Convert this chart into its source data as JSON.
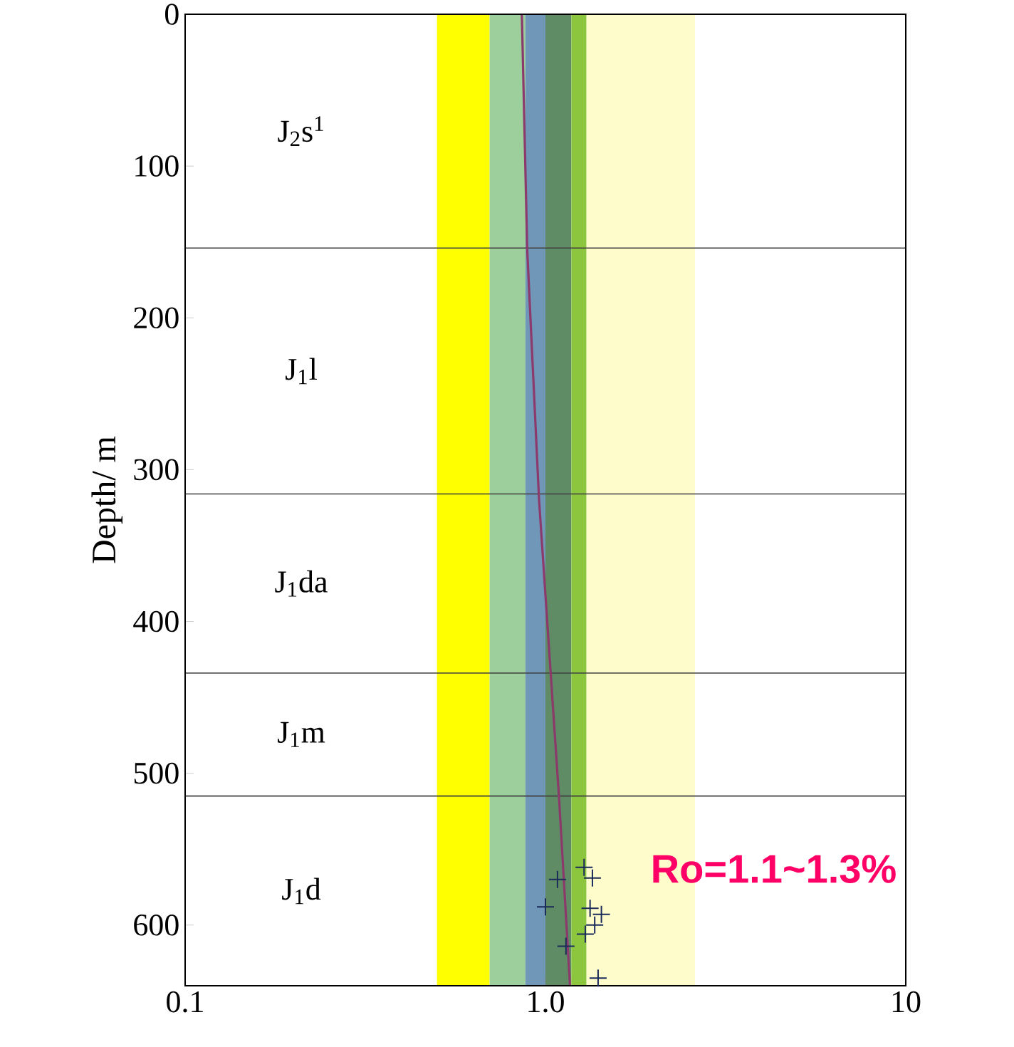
{
  "chart_data": {
    "type": "line",
    "ylabel": "Depth/ m",
    "log": "x",
    "xlim": [
      0.1,
      10
    ],
    "xticks": [
      0.1,
      {
        "value": 1,
        "label": "1.0"
      },
      10
    ],
    "ylim": [
      640,
      0
    ],
    "yticks": [
      0,
      100,
      200,
      300,
      400,
      500,
      600
    ],
    "grid": false,
    "bands": [
      {
        "axis": "x",
        "from": 0.5,
        "to": 0.7,
        "color": "#ffff00"
      },
      {
        "axis": "x",
        "from": 0.7,
        "to": 0.88,
        "color": "#9dcf9d"
      },
      {
        "axis": "x",
        "from": 0.88,
        "to": 1.0,
        "color": "#7096b8"
      },
      {
        "axis": "x",
        "from": 1.0,
        "to": 1.18,
        "color": "#5f8c64"
      },
      {
        "axis": "x",
        "from": 1.18,
        "to": 1.3,
        "color": "#8cc63f"
      },
      {
        "axis": "x",
        "from": 1.3,
        "to": 2.6,
        "color": "#fffccc"
      }
    ],
    "ref_lines": [
      {
        "axis": "y",
        "value": 154,
        "color": "#404040"
      },
      {
        "axis": "y",
        "value": 316,
        "color": "#404040"
      },
      {
        "axis": "y",
        "value": 434,
        "color": "#404040"
      },
      {
        "axis": "y",
        "value": 515,
        "color": "#404040"
      }
    ],
    "series": [
      {
        "color": "#8b3a6b",
        "line_style": "solid",
        "marker": "none",
        "x": [
          0.86,
          0.89,
          0.96,
          1.09,
          1.17
        ],
        "values": [
          0,
          155,
          320,
          515,
          640
        ]
      },
      {
        "type": "scatter",
        "color": "#1a2a5a",
        "marker": "cross",
        "x": [
          1.28,
          1.35,
          1.08,
          1.0,
          1.33,
          1.43,
          1.37,
          1.29,
          1.14,
          1.4
        ],
        "values": [
          562,
          569,
          570,
          588,
          589,
          593,
          600,
          606,
          614,
          635
        ]
      }
    ],
    "annotations": [
      "J$_{2}$s$^{1}$",
      "J$_{1}$l",
      "J$_{1}$da",
      "J$_{1}$m",
      "J$_{1}$d",
      "Ro=1.1~1.3%"
    ]
  }
}
